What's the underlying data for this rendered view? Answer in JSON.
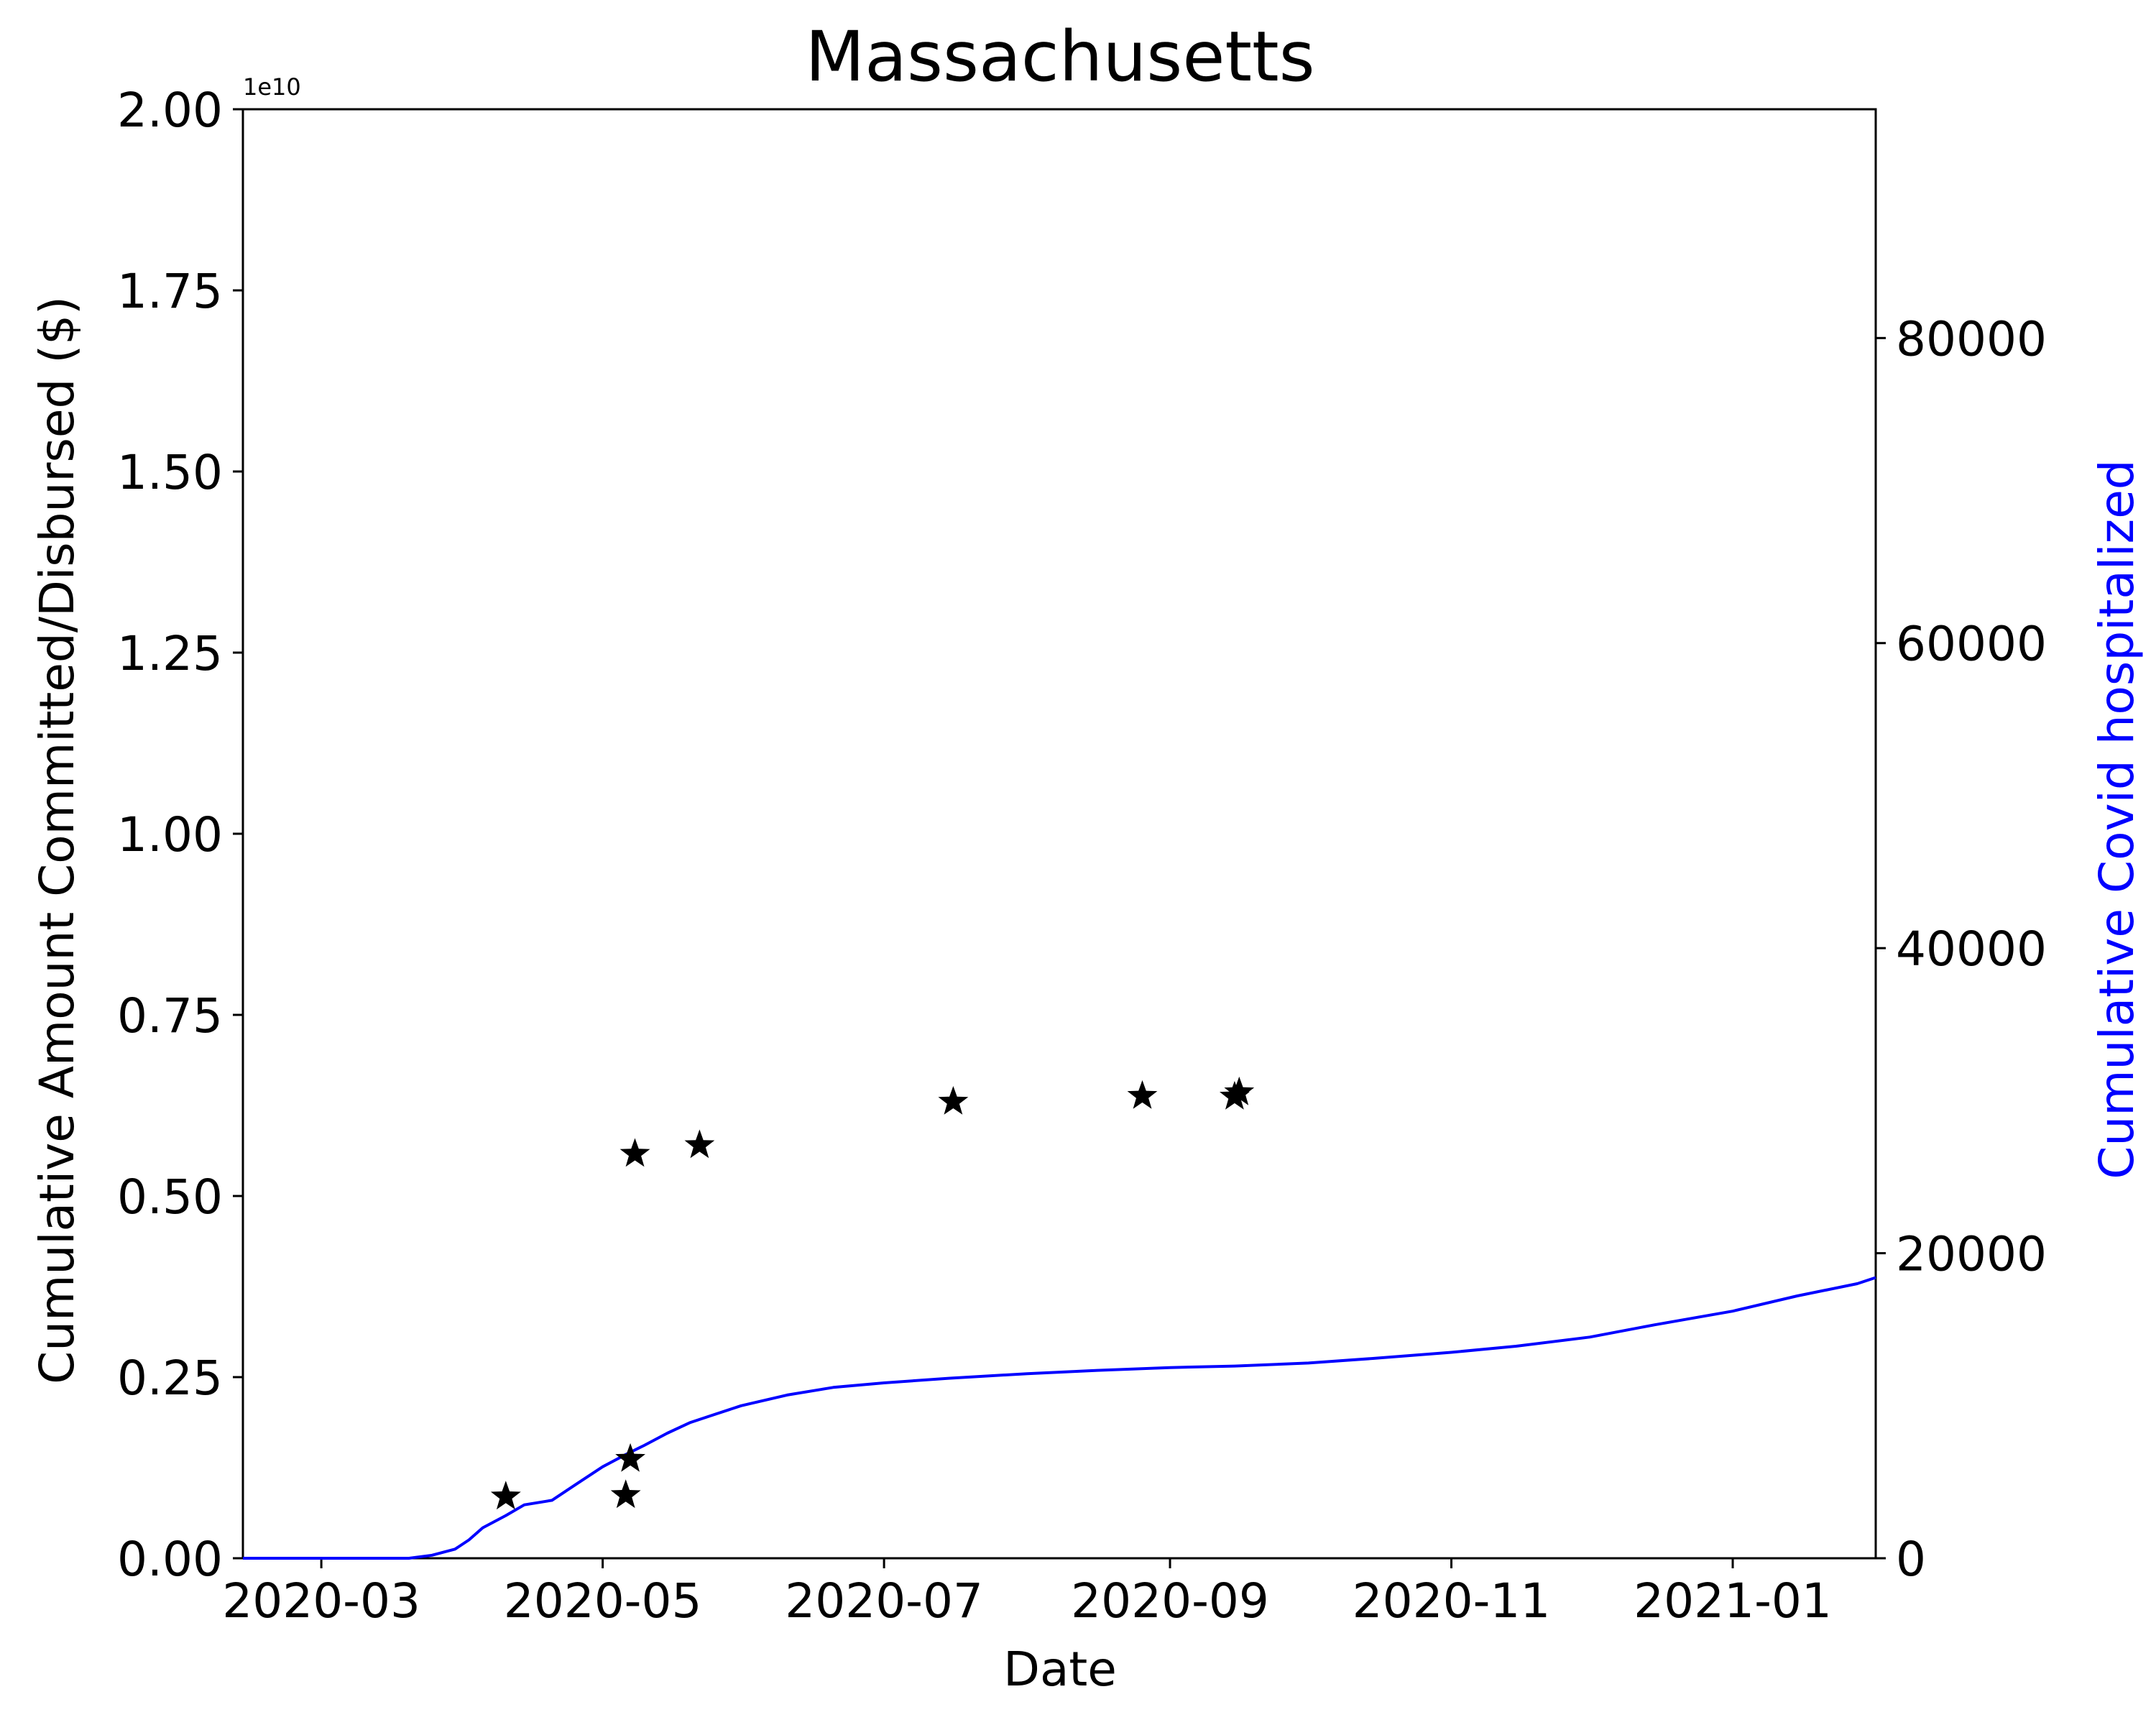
{
  "chart_data": {
    "type": "scatter",
    "title": "Massachusetts",
    "xlabel": "Date",
    "ylabel": "Cumulative Amount Committed/Disbursed ($)",
    "y2label": "Cumulative Covid hospitalized",
    "y_offset_text": "1e10",
    "xlim": [
      "2020-02-13",
      "2021-02-01"
    ],
    "ylim": [
      0,
      20000000000
    ],
    "y2lim": [
      0,
      95000
    ],
    "x_ticks": [
      "2020-03-01",
      "2020-05-01",
      "2020-07-01",
      "2020-09-01",
      "2020-11-01",
      "2021-01-01"
    ],
    "x_tick_labels": [
      "2020-03",
      "2020-05",
      "2020-07",
      "2020-09",
      "2020-11",
      "2021-01"
    ],
    "y_ticks": [
      0,
      2500000000,
      5000000000,
      7500000000,
      10000000000,
      12500000000,
      15000000000,
      17500000000,
      20000000000
    ],
    "y_tick_labels": [
      "0.00",
      "0.25",
      "0.50",
      "0.75",
      "1.00",
      "1.25",
      "1.50",
      "1.75",
      "2.00"
    ],
    "y2_ticks": [
      0,
      20000,
      40000,
      60000,
      80000
    ],
    "y2_tick_labels": [
      "0",
      "20000",
      "40000",
      "60000",
      "80000"
    ],
    "grid": false,
    "colors": {
      "committed": "#000000",
      "hospitalized": "#0000ff",
      "axes": "#000000"
    },
    "series": [
      {
        "type": "scatter",
        "marker": "star",
        "axis": "left",
        "points": [
          {
            "x": "2020-04-10",
            "y": 850000000
          },
          {
            "x": "2020-05-06",
            "y": 870000000
          },
          {
            "x": "2020-05-07",
            "y": 1370000000
          },
          {
            "x": "2020-05-08",
            "y": 5580000000
          },
          {
            "x": "2020-05-22",
            "y": 5700000000
          },
          {
            "x": "2020-07-16",
            "y": 6300000000
          },
          {
            "x": "2020-08-26",
            "y": 6380000000
          },
          {
            "x": "2020-09-15",
            "y": 6370000000
          },
          {
            "x": "2020-09-16",
            "y": 6430000000
          }
        ]
      },
      {
        "type": "line",
        "axis": "right",
        "points": [
          {
            "x": "2020-02-13",
            "y": 0
          },
          {
            "x": "2020-03-20",
            "y": 0
          },
          {
            "x": "2020-03-25",
            "y": 200
          },
          {
            "x": "2020-03-30",
            "y": 600
          },
          {
            "x": "2020-04-02",
            "y": 1200
          },
          {
            "x": "2020-04-05",
            "y": 2000
          },
          {
            "x": "2020-04-10",
            "y": 2800
          },
          {
            "x": "2020-04-14",
            "y": 3500
          },
          {
            "x": "2020-04-20",
            "y": 3800
          },
          {
            "x": "2020-04-25",
            "y": 4800
          },
          {
            "x": "2020-05-01",
            "y": 6000
          },
          {
            "x": "2020-05-06",
            "y": 6800
          },
          {
            "x": "2020-05-10",
            "y": 7400
          },
          {
            "x": "2020-05-15",
            "y": 8200
          },
          {
            "x": "2020-05-20",
            "y": 8900
          },
          {
            "x": "2020-05-25",
            "y": 9400
          },
          {
            "x": "2020-05-31",
            "y": 10000
          },
          {
            "x": "2020-06-10",
            "y": 10700
          },
          {
            "x": "2020-06-20",
            "y": 11200
          },
          {
            "x": "2020-07-01",
            "y": 11500
          },
          {
            "x": "2020-07-15",
            "y": 11800
          },
          {
            "x": "2020-08-01",
            "y": 12100
          },
          {
            "x": "2020-08-15",
            "y": 12300
          },
          {
            "x": "2020-09-01",
            "y": 12500
          },
          {
            "x": "2020-09-15",
            "y": 12600
          },
          {
            "x": "2020-10-01",
            "y": 12800
          },
          {
            "x": "2020-10-15",
            "y": 13100
          },
          {
            "x": "2020-11-01",
            "y": 13500
          },
          {
            "x": "2020-11-15",
            "y": 13900
          },
          {
            "x": "2020-12-01",
            "y": 14500
          },
          {
            "x": "2020-12-15",
            "y": 15300
          },
          {
            "x": "2021-01-01",
            "y": 16200
          },
          {
            "x": "2021-01-15",
            "y": 17200
          },
          {
            "x": "2021-01-28",
            "y": 18000
          },
          {
            "x": "2021-02-01",
            "y": 18400
          }
        ]
      }
    ]
  }
}
